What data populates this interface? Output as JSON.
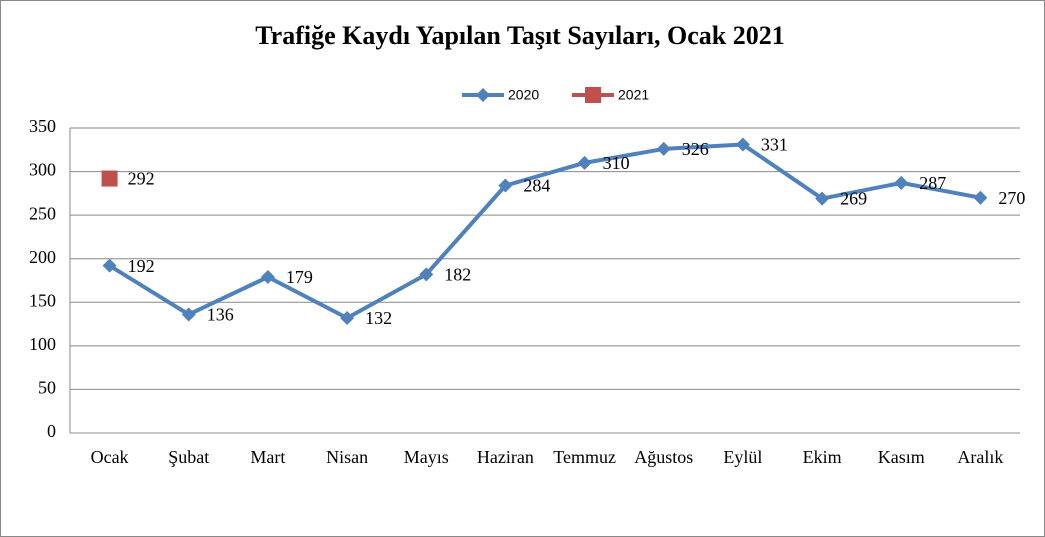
{
  "chart_data": {
    "type": "line",
    "title": "Trafiğe Kaydı Yapılan Taşıt Sayıları,  Ocak 2021",
    "categories": [
      "Ocak",
      "Şubat",
      "Mart",
      "Nisan",
      "Mayıs",
      "Haziran",
      "Temmuz",
      "Ağustos",
      "Eylül",
      "Ekim",
      "Kasım",
      "Aralık"
    ],
    "series": [
      {
        "name": "2020",
        "color": "#4f81bd",
        "marker": "diamond",
        "values": [
          192,
          136,
          179,
          132,
          182,
          284,
          310,
          326,
          331,
          269,
          287,
          270
        ]
      },
      {
        "name": "2021",
        "color": "#c0504d",
        "marker": "square",
        "values": [
          292,
          null,
          null,
          null,
          null,
          null,
          null,
          null,
          null,
          null,
          null,
          null
        ]
      }
    ],
    "ylim": [
      0,
      350
    ],
    "yticks": [
      0,
      50,
      100,
      150,
      200,
      250,
      300,
      350
    ],
    "grid": true,
    "legend": "top"
  }
}
